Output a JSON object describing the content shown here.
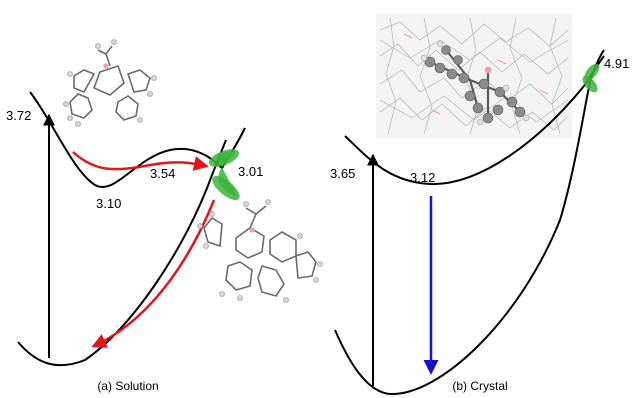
{
  "panel_a": {
    "caption": "(a) Solution",
    "energies": {
      "vertical": "3.72",
      "barrier": "3.54",
      "intersection": "3.01",
      "minimum": "3.10"
    }
  },
  "panel_b": {
    "caption": "(b) Crystal",
    "energies": {
      "vertical": "3.65",
      "minimum": "3.12",
      "intersection": "4.91"
    }
  },
  "colors": {
    "curve": "#000000",
    "red_path": "#e0161b",
    "blue_arrow": "#1414cc",
    "conical_intersection": "#3cb43c",
    "atom_c": "#7d7d7d",
    "atom_h": "#d9d9d9",
    "atom_b": "#e8a0b0"
  }
}
